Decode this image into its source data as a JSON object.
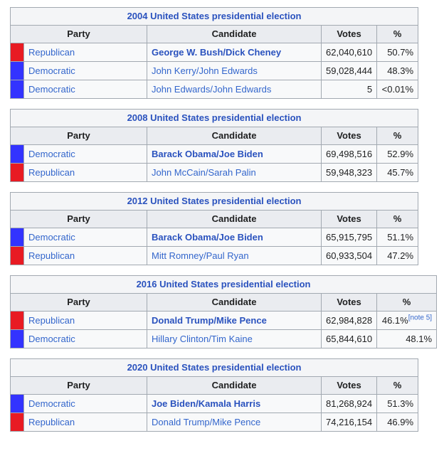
{
  "columns": {
    "party": "Party",
    "candidate": "Candidate",
    "votes": "Votes",
    "pct": "%"
  },
  "party_colors": {
    "Republican": "#E81B23",
    "Democratic": "#3333FF"
  },
  "link_color": "#3366cc",
  "tables": [
    {
      "title": "2004 United States presidential election",
      "wide_pct": false,
      "rows": [
        {
          "party": "Republican",
          "candidate": "George W. Bush/Dick Cheney",
          "winner": true,
          "votes": "62,040,610",
          "pct": "50.7%",
          "note": ""
        },
        {
          "party": "Democratic",
          "candidate": "John Kerry/John Edwards",
          "winner": false,
          "votes": "59,028,444",
          "pct": "48.3%",
          "note": ""
        },
        {
          "party": "Democratic",
          "candidate": "John Edwards/John Edwards",
          "winner": false,
          "votes": "5",
          "pct": "<0.01%",
          "note": ""
        }
      ]
    },
    {
      "title": "2008 United States presidential election",
      "wide_pct": false,
      "rows": [
        {
          "party": "Democratic",
          "candidate": "Barack Obama/Joe Biden",
          "winner": true,
          "votes": "69,498,516",
          "pct": "52.9%",
          "note": ""
        },
        {
          "party": "Republican",
          "candidate": "John McCain/Sarah Palin",
          "winner": false,
          "votes": "59,948,323",
          "pct": "45.7%",
          "note": ""
        }
      ]
    },
    {
      "title": "2012 United States presidential election",
      "wide_pct": false,
      "rows": [
        {
          "party": "Democratic",
          "candidate": "Barack Obama/Joe Biden",
          "winner": true,
          "votes": "65,915,795",
          "pct": "51.1%",
          "note": ""
        },
        {
          "party": "Republican",
          "candidate": "Mitt Romney/Paul Ryan",
          "winner": false,
          "votes": "60,933,504",
          "pct": "47.2%",
          "note": ""
        }
      ]
    },
    {
      "title": "2016 United States presidential election",
      "wide_pct": true,
      "rows": [
        {
          "party": "Republican",
          "candidate": "Donald Trump/Mike Pence",
          "winner": true,
          "votes": "62,984,828",
          "pct": "46.1%",
          "note": "[note 5]"
        },
        {
          "party": "Democratic",
          "candidate": "Hillary Clinton/Tim Kaine",
          "winner": false,
          "votes": "65,844,610",
          "pct": "48.1%",
          "note": ""
        }
      ]
    },
    {
      "title": "2020 United States presidential election",
      "wide_pct": false,
      "rows": [
        {
          "party": "Democratic",
          "candidate": "Joe Biden/Kamala Harris",
          "winner": true,
          "votes": "81,268,924",
          "pct": "51.3%",
          "note": ""
        },
        {
          "party": "Republican",
          "candidate": "Donald Trump/Mike Pence",
          "winner": false,
          "votes": "74,216,154",
          "pct": "46.9%",
          "note": ""
        }
      ]
    }
  ]
}
